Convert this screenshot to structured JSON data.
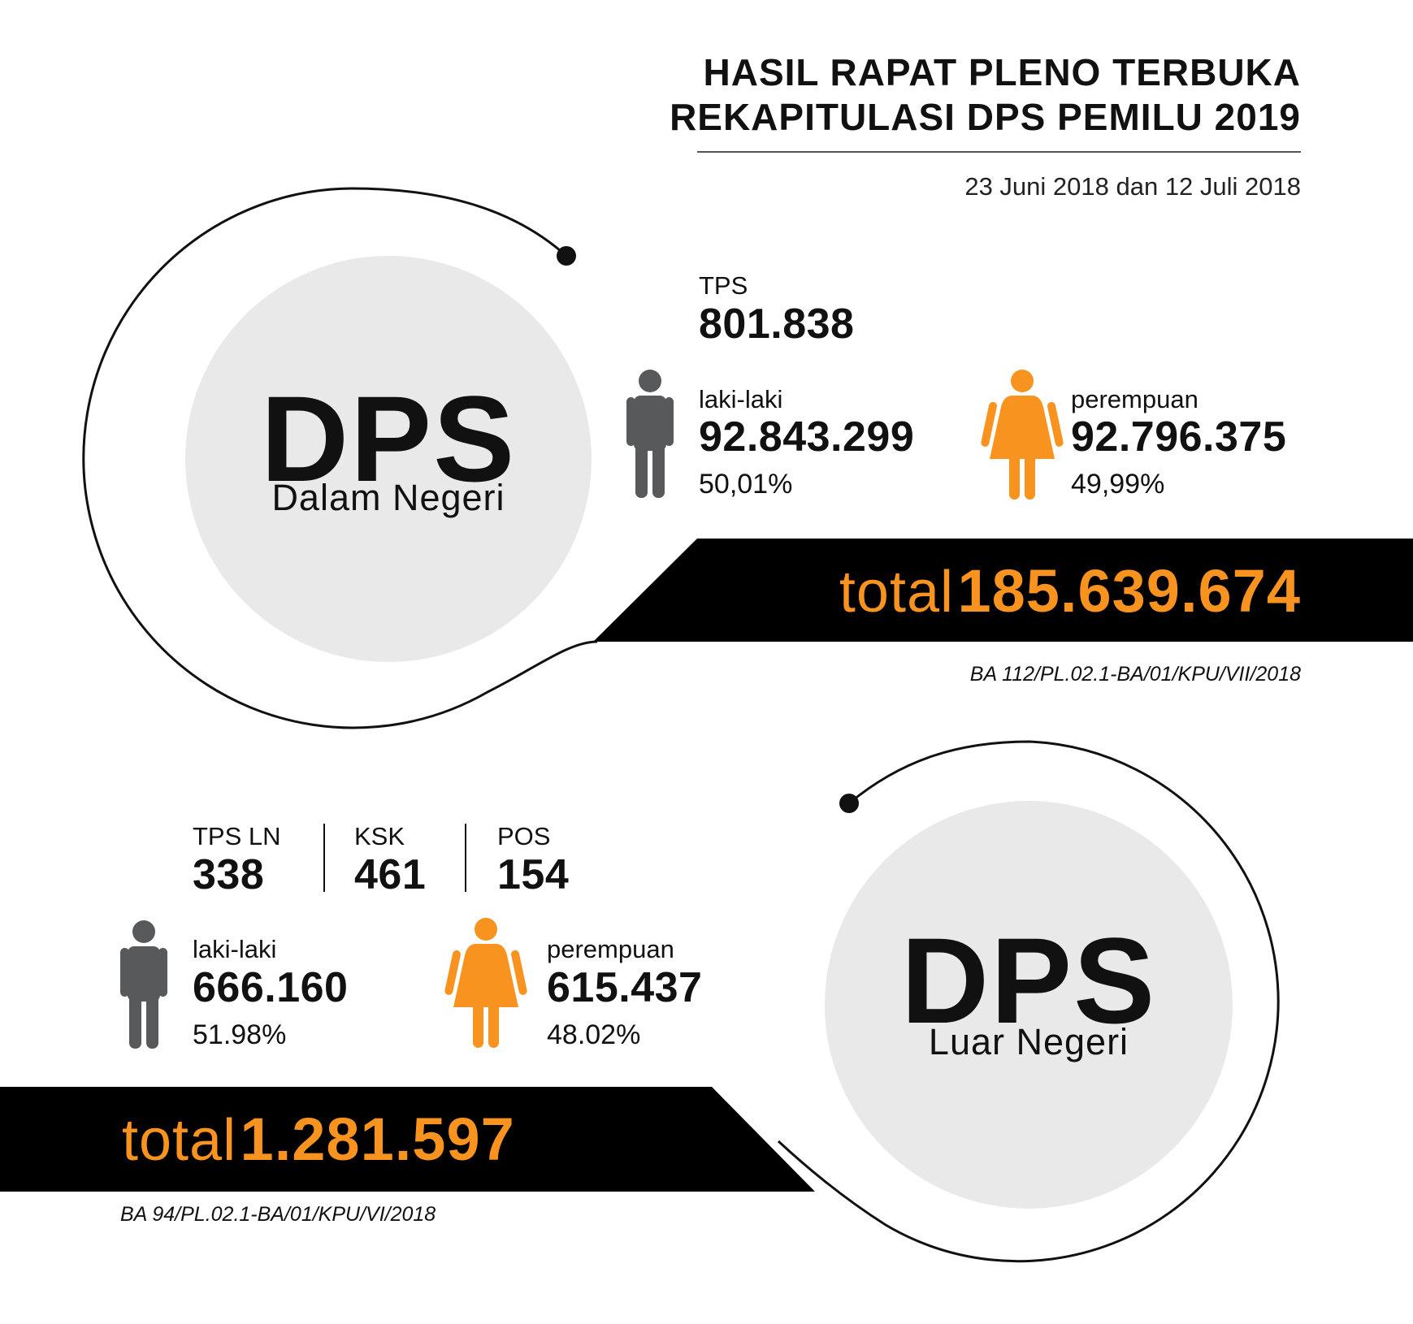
{
  "header": {
    "title_line1": "HASIL RAPAT PLENO TERBUKA",
    "title_line2": "REKAPITULASI DPS PEMILU 2019",
    "date": "23 Juni 2018 dan 12 Juli 2018"
  },
  "dalam_negeri": {
    "heading": "DPS",
    "subheading": "Dalam Negeri",
    "tps_label": "TPS",
    "tps_value": "801.838",
    "male_label": "laki-laki",
    "male_value": "92.843.299",
    "male_pct": "50,01%",
    "female_label": "perempuan",
    "female_value": "92.796.375",
    "female_pct": "49,99%",
    "total_word": "total",
    "total_value": "185.639.674",
    "ba_ref": "BA 112/PL.02.1-BA/01/KPU/VII/2018"
  },
  "luar_negeri": {
    "heading": "DPS",
    "subheading": "Luar Negeri",
    "tps_ln_label": "TPS LN",
    "tps_ln_value": "338",
    "ksk_label": "KSK",
    "ksk_value": "461",
    "pos_label": "POS",
    "pos_value": "154",
    "male_label": "laki-laki",
    "male_value": "666.160",
    "male_pct": "51.98%",
    "female_label": "perempuan",
    "female_value": "615.437",
    "female_pct": "48.02%",
    "total_word": "total",
    "total_value": "1.281.597",
    "ba_ref": "BA 94/PL.02.1-BA/01/KPU/VI/2018"
  },
  "colors": {
    "accent_orange": "#f7931e",
    "male_gray": "#58595b",
    "circle_fill": "#e9e9ea",
    "bar_black": "#000000"
  },
  "icons": {
    "male": "male-person-icon",
    "female": "female-person-icon"
  }
}
